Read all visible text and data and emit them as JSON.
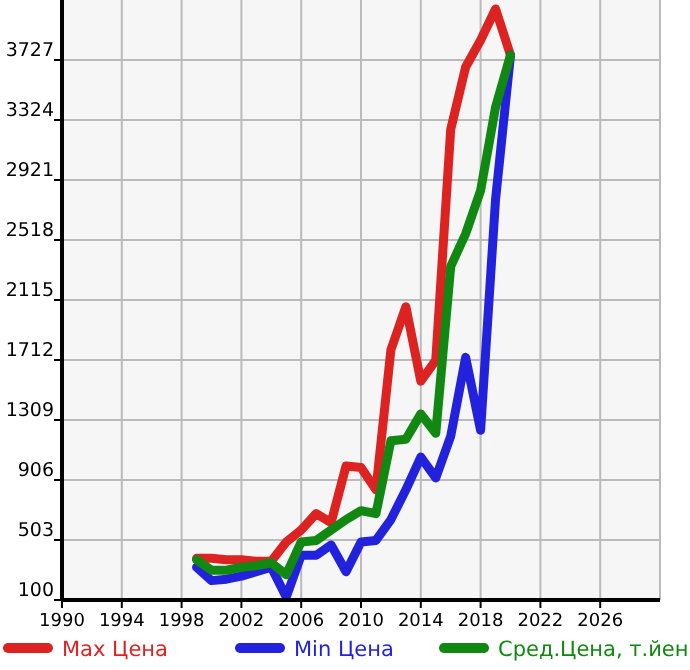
{
  "chart_data": {
    "type": "line",
    "x": [
      1999,
      2000,
      2001,
      2002,
      2003,
      2004,
      2005,
      2006,
      2007,
      2008,
      2009,
      2010,
      2011,
      2012,
      2013,
      2014,
      2015,
      2016,
      2017,
      2018,
      2019,
      2020
    ],
    "series": [
      {
        "name": "Max Цена",
        "color": "#dd2222",
        "values": [
          380,
          380,
          370,
          370,
          360,
          360,
          490,
          570,
          680,
          620,
          1000,
          990,
          840,
          1780,
          2070,
          1570,
          1710,
          3260,
          3680,
          3860,
          4070,
          3760
        ]
      },
      {
        "name": "Min Цена",
        "color": "#2222dd",
        "values": [
          320,
          230,
          240,
          260,
          290,
          320,
          120,
          400,
          400,
          470,
          290,
          490,
          500,
          640,
          840,
          1060,
          920,
          1200,
          1730,
          1240,
          2790,
          3760
        ]
      },
      {
        "name": "Сред.Цена, т.йен",
        "color": "#118811",
        "values": [
          370,
          300,
          300,
          320,
          330,
          350,
          270,
          490,
          500,
          570,
          640,
          700,
          680,
          1170,
          1180,
          1350,
          1220,
          2340,
          2560,
          2850,
          3410,
          3760
        ]
      }
    ],
    "xlim": [
      1990,
      2030
    ],
    "xticks": [
      1990,
      1994,
      1998,
      2002,
      2006,
      2010,
      2014,
      2018,
      2022,
      2026
    ],
    "ylim": [
      100,
      4130
    ],
    "yticks": [
      100,
      503,
      906,
      1309,
      1712,
      2115,
      2518,
      2921,
      3324,
      3727
    ],
    "grid": true,
    "legend": "bottom",
    "marker": "none",
    "line_style": "solid"
  }
}
